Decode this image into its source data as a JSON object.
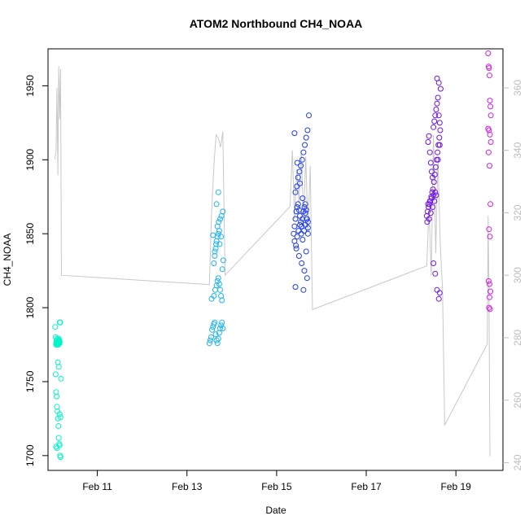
{
  "chart_data": {
    "type": "scatter",
    "title": "ATOM2 Northbound CH4_NOAA",
    "xlabel": "Date",
    "ylabel": "CH4_NOAA",
    "x_unit": "days since Feb 10 00:00",
    "xlim": [
      9.9,
      20.05
    ],
    "ylim": [
      1690,
      1975
    ],
    "y2lim": [
      237.5,
      372.5
    ],
    "x_ticks": [
      {
        "value": 11,
        "label": "Feb 11"
      },
      {
        "value": 13,
        "label": "Feb 13"
      },
      {
        "value": 15,
        "label": "Feb 15"
      },
      {
        "value": 17,
        "label": "Feb 17"
      },
      {
        "value": 19,
        "label": "Feb 19"
      }
    ],
    "y_ticks": [
      1700,
      1750,
      1800,
      1850,
      1900,
      1950
    ],
    "y2_ticks": [
      240,
      260,
      280,
      300,
      320,
      340,
      360
    ],
    "colors": {
      "series1": "#00f5c8",
      "series2": "#1eb4f0",
      "series3": "#1e3cf0",
      "series4": "#6e14e6",
      "series5": "#d21ee6",
      "secondary_line": "#c8c8c8"
    },
    "series": [
      {
        "color": "#00f5c8",
        "x": [
          10.06,
          10.07,
          10.08,
          10.08,
          10.09,
          10.1,
          10.1,
          10.1,
          10.11,
          10.12,
          10.12,
          10.13,
          10.13,
          10.14,
          10.14,
          10.15,
          10.15,
          10.15,
          10.16,
          10.16,
          10.16,
          10.17,
          10.17,
          10.07,
          10.08,
          10.09,
          10.1,
          10.11,
          10.12,
          10.13,
          10.14,
          10.15,
          10.16,
          10.17,
          10.18,
          10.19,
          10.08,
          10.1,
          10.12,
          10.14,
          10.16,
          10.18
        ],
        "y": [
          1787,
          1780,
          1776,
          1775,
          1778,
          1777,
          1776,
          1779,
          1775,
          1776,
          1777,
          1778,
          1775,
          1776,
          1779,
          1777,
          1778,
          1776,
          1777,
          1776,
          1790,
          1790,
          1790,
          1755,
          1743,
          1740,
          1733,
          1730,
          1725,
          1720,
          1712,
          1708,
          1707,
          1700,
          1699,
          1752,
          1706,
          1705,
          1763,
          1760,
          1728,
          1726
        ]
      },
      {
        "color": "#1eb4f0",
        "x": [
          13.5,
          13.52,
          13.54,
          13.56,
          13.58,
          13.6,
          13.62,
          13.64,
          13.66,
          13.68,
          13.7,
          13.72,
          13.74,
          13.76,
          13.78,
          13.8,
          13.55,
          13.6,
          13.63,
          13.66,
          13.68,
          13.7,
          13.72,
          13.74,
          13.76,
          13.78,
          13.6,
          13.62,
          13.64,
          13.66,
          13.68,
          13.7,
          13.72,
          13.58,
          13.62,
          13.65,
          13.68,
          13.71,
          13.74,
          13.77,
          13.8,
          13.66,
          13.7,
          13.73,
          13.76,
          13.79,
          13.81
        ],
        "y": [
          1776,
          1778,
          1780,
          1785,
          1787,
          1789,
          1790,
          1782,
          1778,
          1776,
          1779,
          1783,
          1786,
          1788,
          1790,
          1786,
          1806,
          1808,
          1812,
          1815,
          1818,
          1820,
          1816,
          1812,
          1808,
          1805,
          1830,
          1835,
          1840,
          1845,
          1848,
          1850,
          1852,
          1849,
          1838,
          1843,
          1855,
          1858,
          1860,
          1862,
          1865,
          1870,
          1878,
          1843,
          1848,
          1826,
          1832
        ]
      },
      {
        "color": "#1e3cf0",
        "x": [
          15.38,
          15.4,
          15.42,
          15.44,
          15.46,
          15.48,
          15.5,
          15.52,
          15.54,
          15.56,
          15.58,
          15.6,
          15.62,
          15.64,
          15.66,
          15.68,
          15.7,
          15.4,
          15.43,
          15.46,
          15.49,
          15.52,
          15.55,
          15.58,
          15.61,
          15.64,
          15.67,
          15.7,
          15.42,
          15.45,
          15.48,
          15.51,
          15.54,
          15.57,
          15.6,
          15.63,
          15.66,
          15.69,
          15.44,
          15.5,
          15.56,
          15.62,
          15.68,
          15.72,
          15.4,
          15.46,
          15.52,
          15.58,
          15.64,
          15.7,
          15.42,
          15.6,
          15.66
        ],
        "y": [
          1850,
          1855,
          1860,
          1865,
          1868,
          1870,
          1866,
          1862,
          1858,
          1855,
          1860,
          1865,
          1868,
          1870,
          1866,
          1860,
          1858,
          1845,
          1842,
          1848,
          1852,
          1856,
          1850,
          1846,
          1852,
          1856,
          1860,
          1850,
          1878,
          1882,
          1888,
          1892,
          1896,
          1900,
          1905,
          1910,
          1915,
          1920,
          1840,
          1835,
          1830,
          1825,
          1820,
          1930,
          1918,
          1898,
          1884,
          1874,
          1864,
          1854,
          1814,
          1812,
          1838
        ]
      },
      {
        "color": "#6e14e6",
        "x": [
          18.35,
          18.37,
          18.39,
          18.41,
          18.43,
          18.45,
          18.47,
          18.49,
          18.51,
          18.53,
          18.55,
          18.57,
          18.59,
          18.61,
          18.63,
          18.65,
          18.38,
          18.4,
          18.42,
          18.44,
          18.46,
          18.48,
          18.5,
          18.52,
          18.54,
          18.56,
          18.58,
          18.6,
          18.62,
          18.64,
          18.36,
          18.4,
          18.44,
          18.48,
          18.52,
          18.56,
          18.6,
          18.64,
          18.38,
          18.42,
          18.46,
          18.5,
          18.54,
          18.58,
          18.62,
          18.66,
          18.5,
          18.54,
          18.58,
          18.62,
          18.64
        ],
        "y": [
          1862,
          1865,
          1868,
          1870,
          1872,
          1875,
          1878,
          1880,
          1885,
          1890,
          1895,
          1900,
          1905,
          1910,
          1915,
          1920,
          1912,
          1916,
          1905,
          1898,
          1892,
          1888,
          1922,
          1926,
          1930,
          1934,
          1938,
          1942,
          1930,
          1925,
          1858,
          1860,
          1864,
          1868,
          1872,
          1876,
          1900,
          1910,
          1870,
          1872,
          1874,
          1876,
          1878,
          1955,
          1952,
          1948,
          1830,
          1823,
          1812,
          1806,
          1810
        ]
      },
      {
        "color": "#d21ee6",
        "x": [
          19.72,
          19.73,
          19.74,
          19.75,
          19.76,
          19.77,
          19.78,
          19.72,
          19.74,
          19.76,
          19.78,
          19.73,
          19.75,
          19.77,
          19.74,
          19.76,
          19.73,
          19.75,
          19.77,
          19.74,
          19.76,
          19.75
        ],
        "y": [
          1972,
          1963,
          1962,
          1957,
          1940,
          1936,
          1930,
          1921,
          1920,
          1917,
          1912,
          1905,
          1896,
          1870,
          1853,
          1848,
          1818,
          1816,
          1811,
          1800,
          1799,
          1807
        ]
      }
    ],
    "secondary_line": {
      "color": "#c8c8c8",
      "x": [
        10.05,
        10.08,
        10.1,
        10.12,
        10.14,
        10.16,
        10.18,
        10.2,
        13.5,
        13.55,
        13.6,
        13.65,
        13.7,
        13.75,
        13.8,
        13.85,
        15.3,
        15.35,
        15.4,
        15.45,
        15.5,
        15.55,
        15.6,
        15.65,
        15.7,
        15.75,
        15.8,
        18.35,
        18.4,
        18.45,
        18.5,
        18.55,
        18.6,
        18.65,
        18.7,
        18.75,
        19.7,
        19.72,
        19.74,
        19.76
      ],
      "y": [
        337,
        340,
        360,
        332,
        367,
        350,
        366,
        300,
        297,
        320,
        335,
        345,
        344,
        341,
        346,
        300,
        322,
        340,
        318,
        334,
        323,
        340,
        318,
        338,
        314,
        335,
        289,
        303,
        322,
        300,
        345,
        307,
        338,
        310,
        296,
        252,
        278,
        319,
        290,
        242
      ]
    }
  }
}
